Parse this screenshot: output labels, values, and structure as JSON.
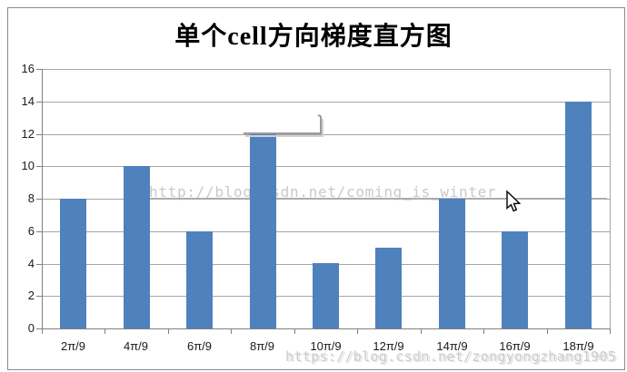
{
  "chart_data": {
    "type": "bar",
    "title": "单个cell方向梯度直方图",
    "categories": [
      "2π/9",
      "4π/9",
      "6π/9",
      "8π/9",
      "10π/9",
      "12π/9",
      "14π/9",
      "16π/9",
      "18π/9"
    ],
    "values": [
      8,
      10,
      6,
      12,
      4,
      5,
      8,
      6,
      14
    ],
    "xlabel": "",
    "ylabel": "",
    "ylim": [
      0,
      16
    ],
    "yticks": [
      0,
      2,
      4,
      6,
      8,
      10,
      12,
      14,
      16
    ],
    "grid": true,
    "legend": "none",
    "bar_color": "#4F81BD",
    "gridline_color": "#a6a6a6",
    "axis_color": "#808080"
  },
  "watermarks": {
    "middle": "http://blog.csdn.net/coming_is_winter",
    "bottom": "https://blog.csdn.net/zongyongzhang1905"
  }
}
